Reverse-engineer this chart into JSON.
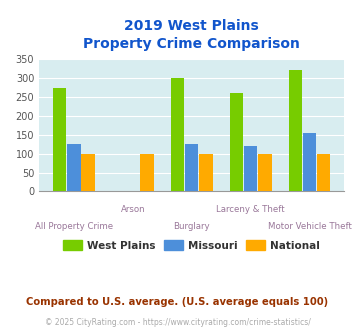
{
  "title_line1": "2019 West Plains",
  "title_line2": "Property Crime Comparison",
  "categories": [
    "All Property Crime",
    "Arson",
    "Burglary",
    "Larceny & Theft",
    "Motor Vehicle Theft"
  ],
  "west_plains": [
    275,
    0,
    302,
    262,
    323
  ],
  "missouri": [
    127,
    0,
    127,
    120,
    155
  ],
  "national": [
    100,
    100,
    100,
    100,
    100
  ],
  "color_wp": "#77cc00",
  "color_mo": "#4d8fda",
  "color_nat": "#ffaa00",
  "ylabel_max": 350,
  "yticks": [
    0,
    50,
    100,
    150,
    200,
    250,
    300,
    350
  ],
  "background_color": "#d8edf0",
  "title_color": "#1155cc",
  "xlabel_color": "#997799",
  "footer_text": "Compared to U.S. average. (U.S. average equals 100)",
  "footer_color": "#993300",
  "copy_text": "© 2025 CityRating.com - https://www.cityrating.com/crime-statistics/",
  "copy_color": "#aaaaaa",
  "legend_label_color": "#333333"
}
